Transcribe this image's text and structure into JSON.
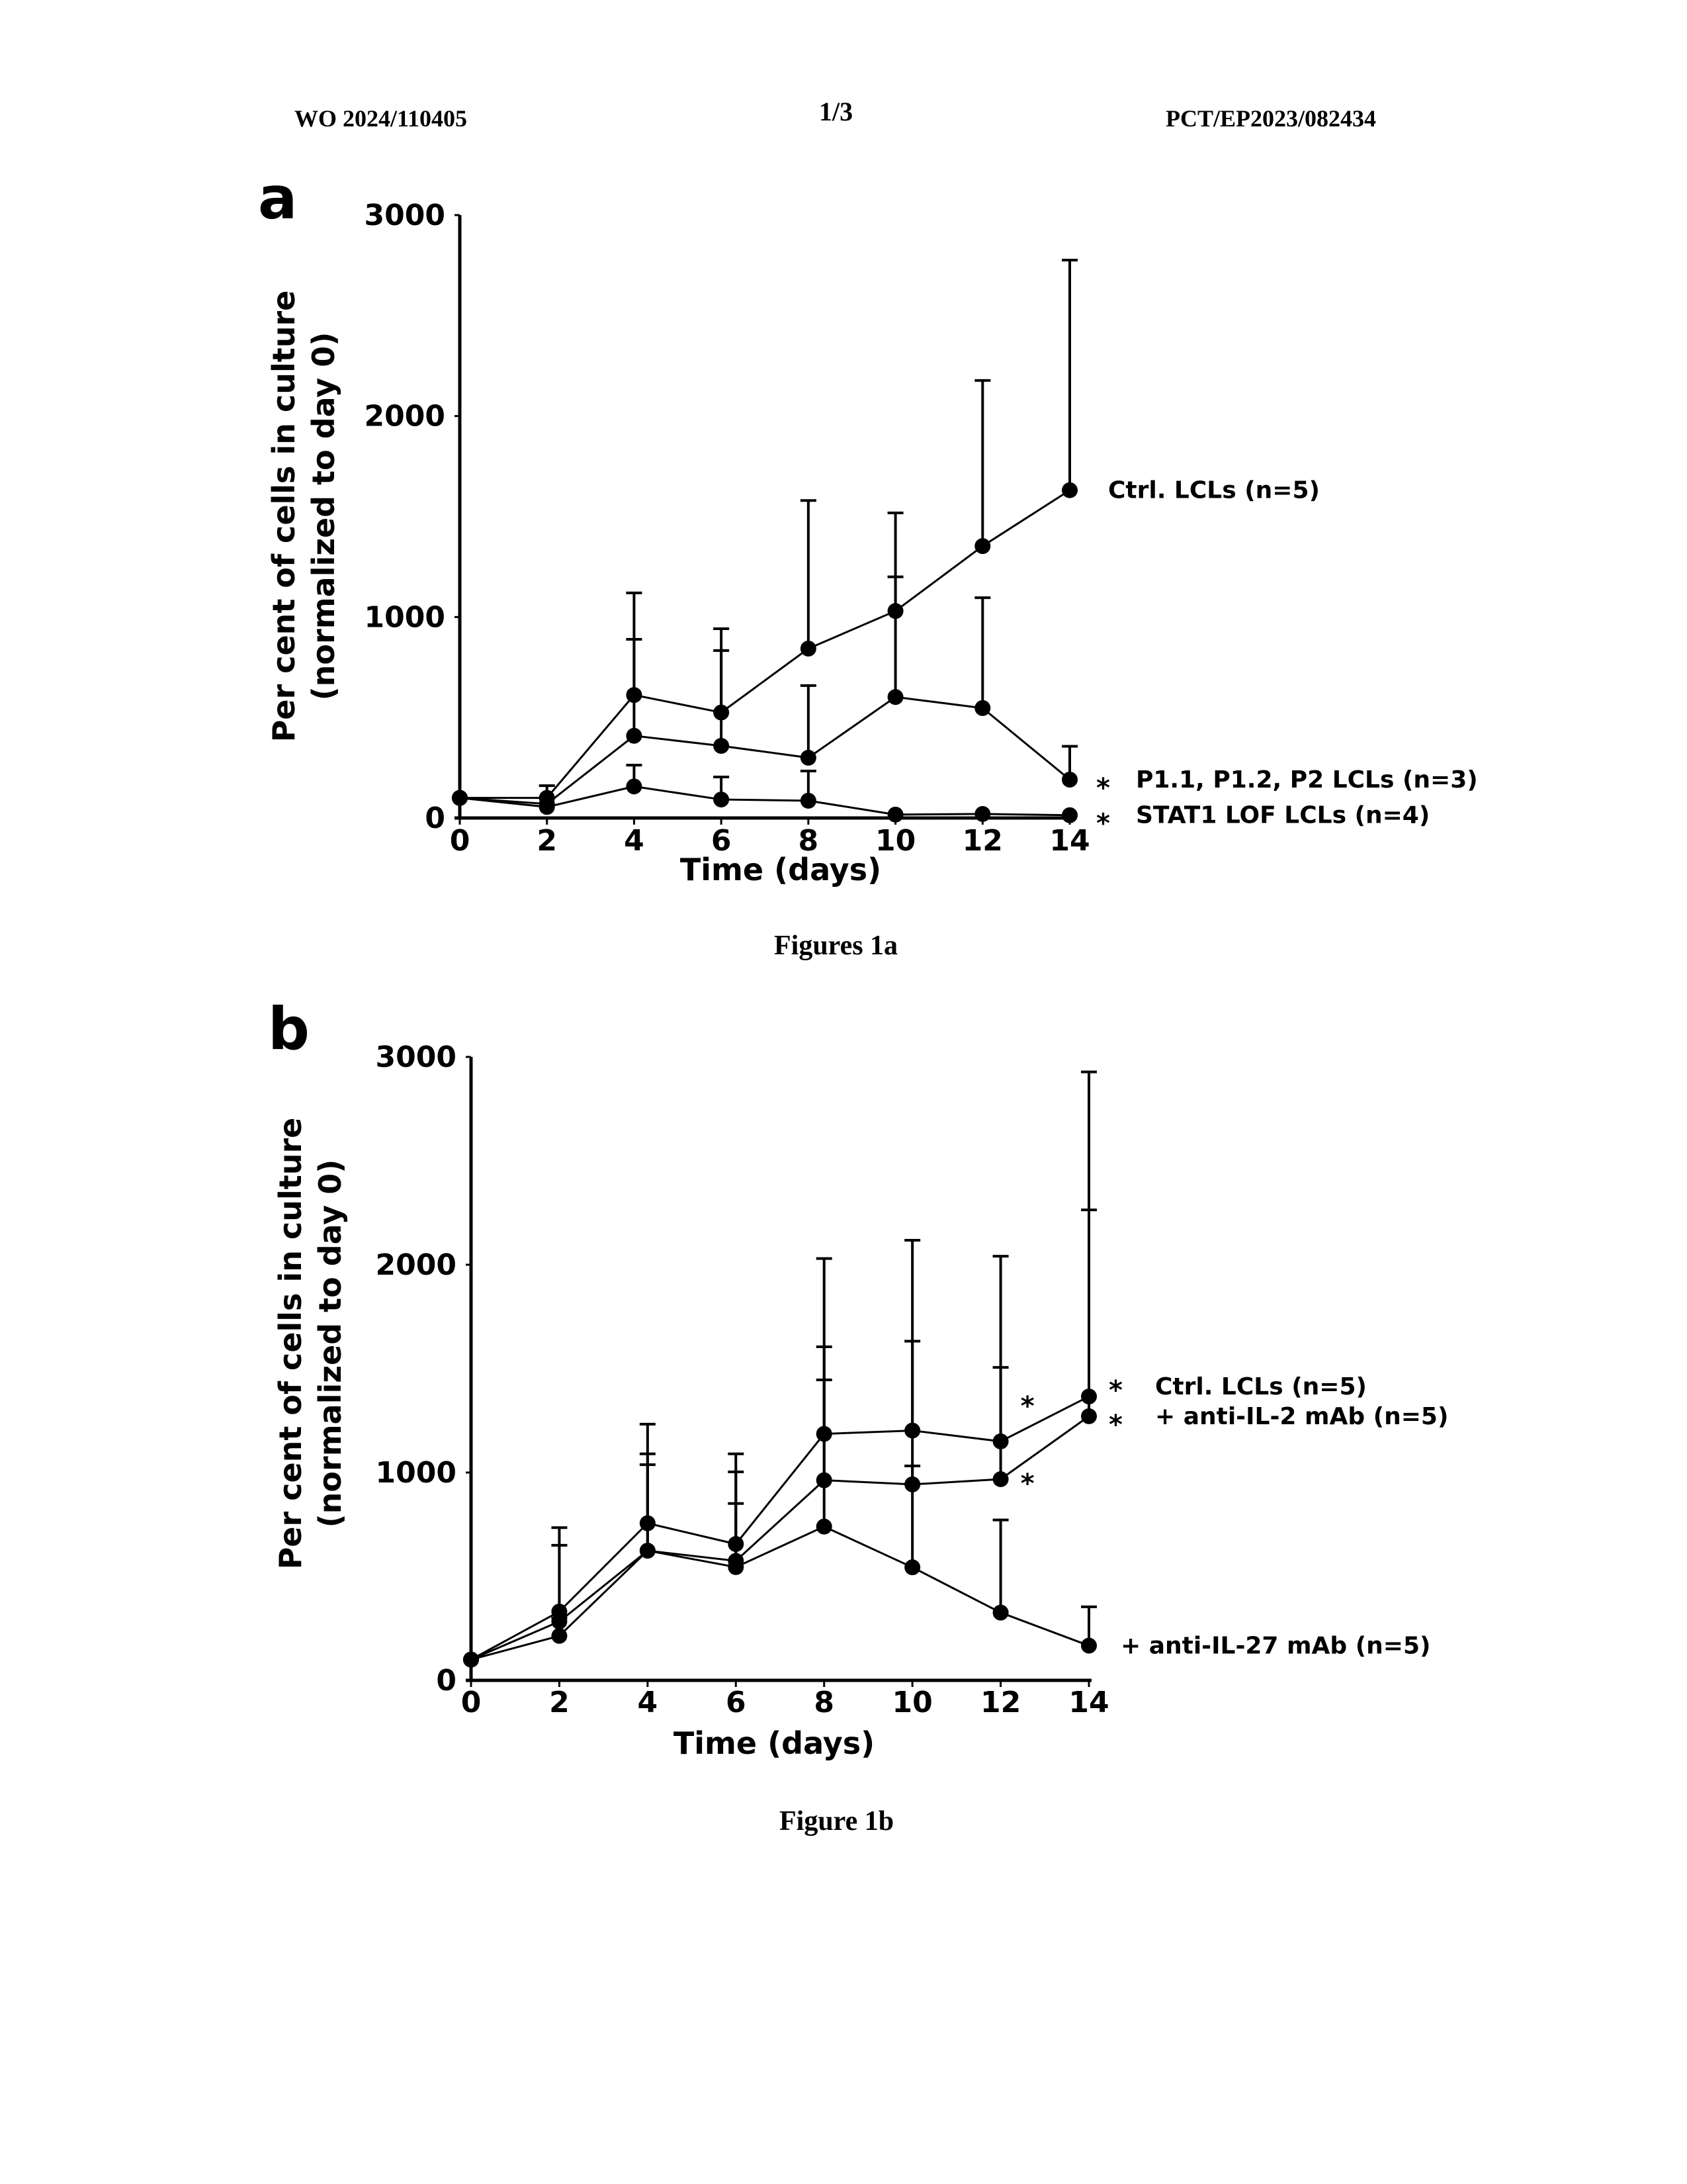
{
  "header": {
    "publication_number": "WO 2024/110405",
    "sheet": "1/3",
    "application_number": "PCT/EP2023/082434"
  },
  "captions": {
    "figure_a": "Figures 1a",
    "figure_b": "Figure 1b"
  },
  "chart_data": [
    {
      "panel": "a",
      "type": "line",
      "title": "",
      "xlabel": "Time (days)",
      "ylabel": "Per cent of cells in culture",
      "ylabel_line2": "(normalized to day 0)",
      "x": [
        0,
        2,
        4,
        6,
        8,
        10,
        12,
        14
      ],
      "xticks": [
        "0",
        "2",
        "4",
        "6",
        "8",
        "10",
        "12",
        "14"
      ],
      "yticks": [
        "0",
        "1000",
        "2000",
        "3000"
      ],
      "xlim": [
        0,
        14
      ],
      "ylim": [
        0,
        3000
      ],
      "grid": false,
      "legend": "inline-right",
      "series": [
        {
          "name": "Ctrl. LCLs (n=5)",
          "significance": "",
          "values": [
            100,
            100,
            612,
            525,
            843,
            1030,
            1353,
            1631
          ],
          "error_upper": [
            100,
            161,
            1120,
            942,
            1580,
            1518,
            2177,
            2776
          ]
        },
        {
          "name": "P1.1, P1.2, P2 LCLs (n=3)",
          "significance": "*",
          "values": [
            100,
            70,
            409,
            359,
            300,
            602,
            547,
            191
          ],
          "error_upper": [
            100,
            100,
            889,
            833,
            659,
            1200,
            1096,
            357
          ]
        },
        {
          "name": "STAT1 LOF LCLs (n=4)",
          "significance": "*",
          "values": [
            100,
            55,
            157,
            92,
            86,
            17,
            20,
            14
          ],
          "error_upper": [
            100,
            55,
            263,
            204,
            234,
            17,
            20,
            14
          ]
        }
      ]
    },
    {
      "panel": "b",
      "type": "line",
      "title": "",
      "xlabel": "Time (days)",
      "ylabel": "Per cent of cells in culture",
      "ylabel_line2": "(normalized to day 0)",
      "x": [
        0,
        2,
        4,
        6,
        8,
        10,
        12,
        14
      ],
      "xticks": [
        "0",
        "2",
        "4",
        "6",
        "8",
        "10",
        "12",
        "14"
      ],
      "yticks": [
        "0",
        "1000",
        "2000",
        "3000"
      ],
      "xlim": [
        0,
        14
      ],
      "ylim": [
        0,
        3000
      ],
      "grid": false,
      "legend": "inline-right",
      "series": [
        {
          "name": "Ctrl. LCLs (n=5)",
          "significance": "*",
          "values": [
            100,
            331,
            756,
            656,
            1186,
            1202,
            1150,
            1366
          ],
          "error_upper": [
            100,
            735,
            1233,
            1090,
            2030,
            2118,
            2041,
            2928
          ]
        },
        {
          "name": "+ anti-IL-2 mAb (n=5)",
          "significance": "*",
          "values": [
            100,
            283,
            624,
            575,
            963,
            943,
            968,
            1271
          ],
          "error_upper": [
            100,
            650,
            1090,
            1003,
            1605,
            1632,
            1506,
            2264
          ]
        },
        {
          "name": "+ anti-IL-27 mAb (n=5)",
          "significance": "",
          "values": [
            100,
            214,
            624,
            545,
            740,
            544,
            326,
            167
          ],
          "error_upper": [
            100,
            300,
            1038,
            851,
            1446,
            1032,
            772,
            354
          ]
        }
      ],
      "annotations": [
        {
          "text": "*",
          "near_day": 12,
          "series": "Ctrl. LCLs (n=5)"
        },
        {
          "text": "*",
          "near_day": 12,
          "series": "+ anti-IL-2 mAb (n=5)"
        }
      ]
    }
  ]
}
